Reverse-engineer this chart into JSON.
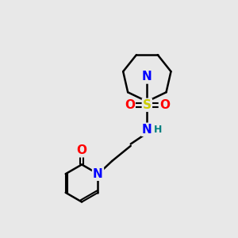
{
  "background_color": "#e8e8e8",
  "bond_color": "#000000",
  "atom_colors": {
    "N": "#0000ff",
    "O": "#ff0000",
    "S": "#cccc00",
    "H": "#008080",
    "C": "#000000"
  },
  "font_size_atoms": 11,
  "font_size_H": 9,
  "figsize": [
    3.0,
    3.0
  ],
  "dpi": 100
}
